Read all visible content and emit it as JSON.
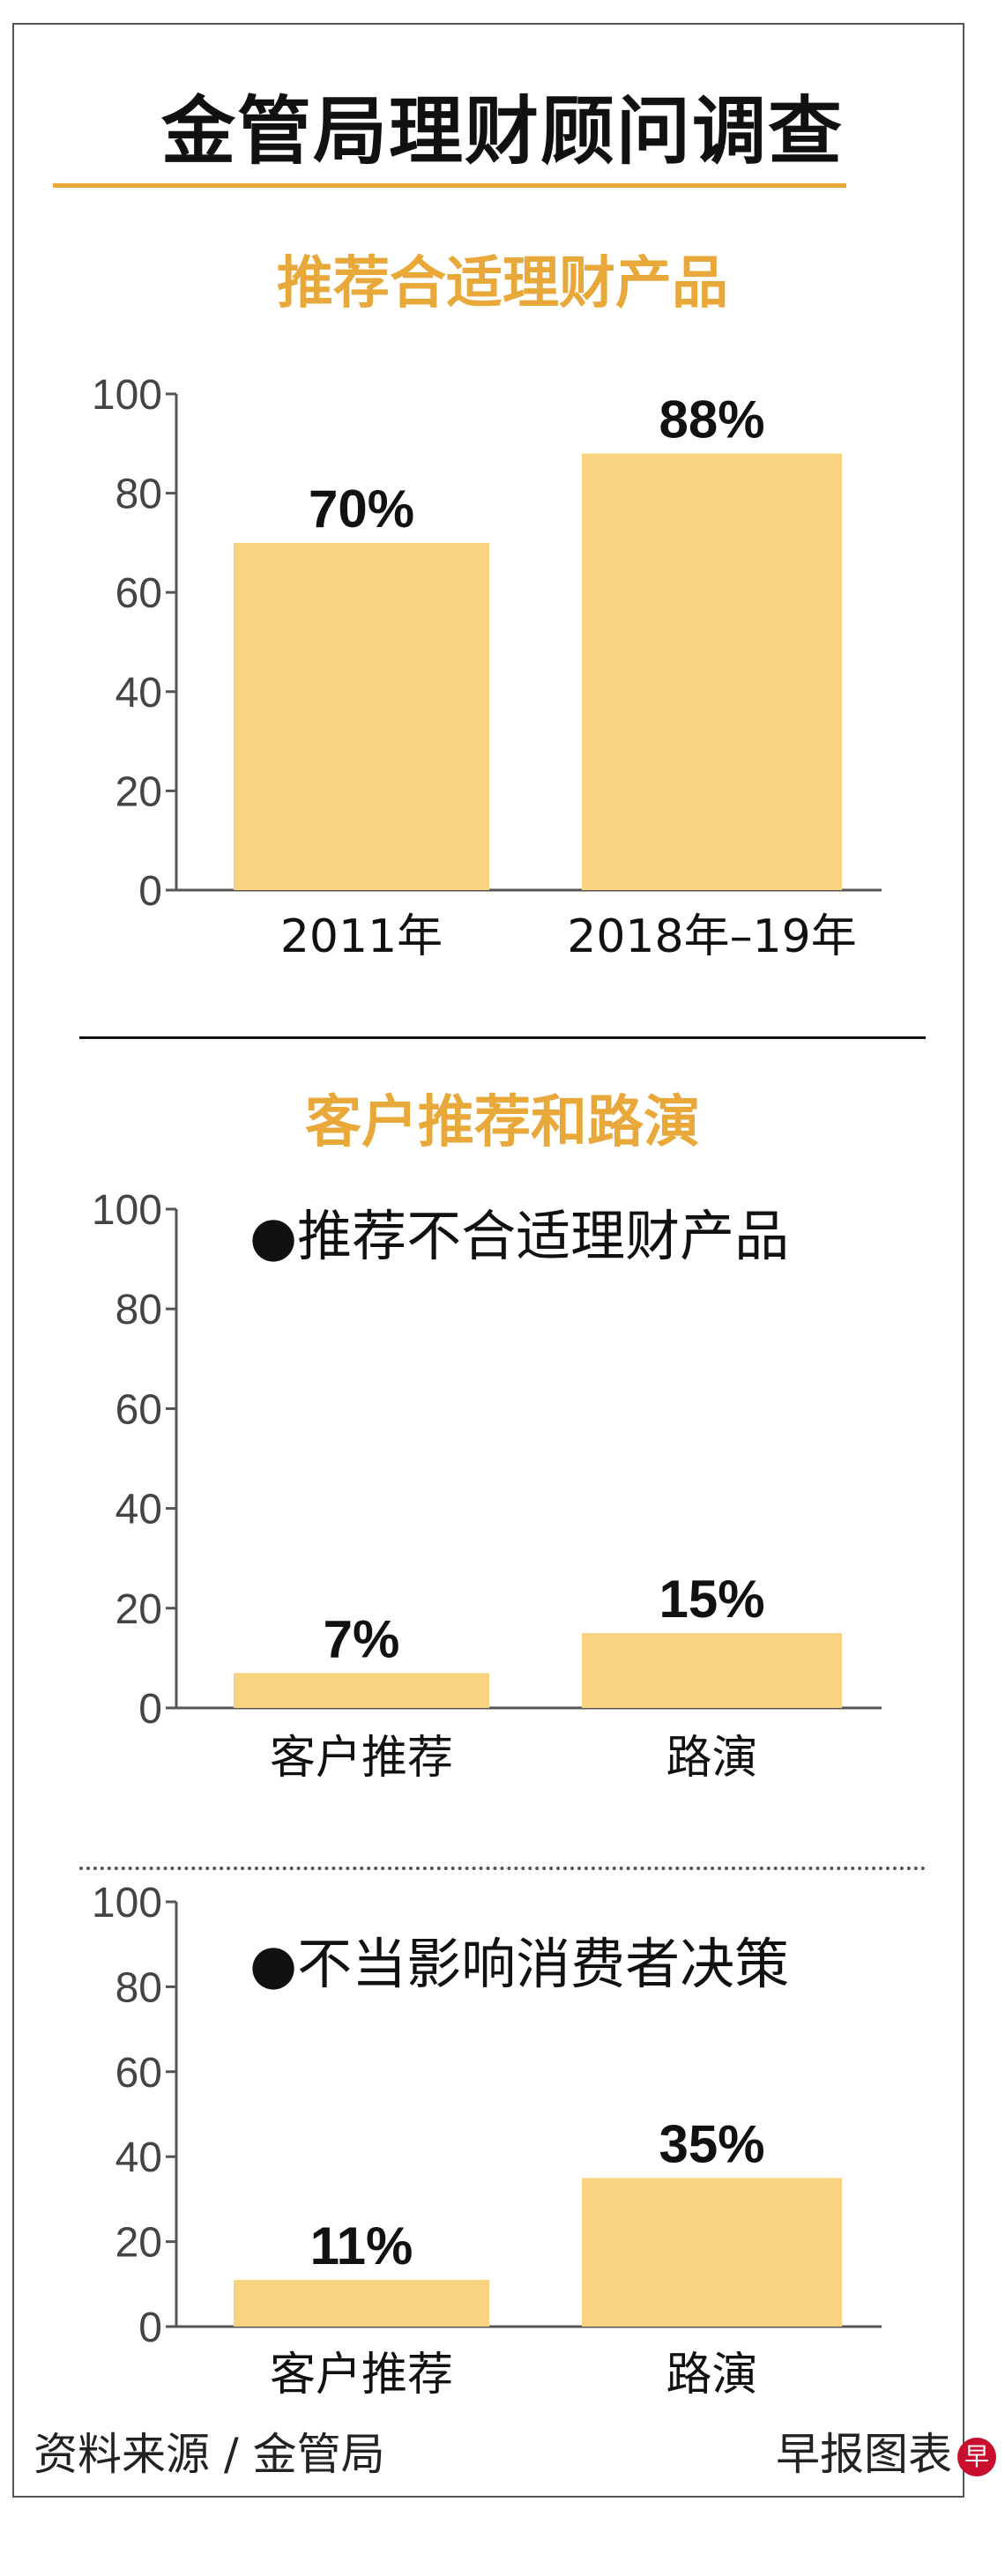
{
  "header": {
    "title": "金管局理财顾问调查"
  },
  "chart_data": [
    {
      "type": "bar",
      "title": "推荐合适理财产品",
      "legend": "",
      "categories": [
        "2011年",
        "2018年–19年"
      ],
      "values": [
        70,
        88
      ],
      "value_labels": [
        "70%",
        "88%"
      ],
      "yticks": [
        "0",
        "20",
        "40",
        "60",
        "80",
        "100"
      ],
      "ylim": [
        0,
        100
      ]
    },
    {
      "type": "bar",
      "title": "客户推荐和路演",
      "legend": "●推荐不合适理财产品",
      "categories": [
        "客户推荐",
        "路演"
      ],
      "values": [
        7,
        15
      ],
      "value_labels": [
        "7%",
        "15%"
      ],
      "yticks": [
        "0",
        "20",
        "40",
        "60",
        "80",
        "100"
      ],
      "ylim": [
        0,
        100
      ]
    },
    {
      "type": "bar",
      "title": "",
      "legend": "●不当影响消费者决策",
      "categories": [
        "客户推荐",
        "路演"
      ],
      "values": [
        11,
        35
      ],
      "value_labels": [
        "11%",
        "35%"
      ],
      "yticks": [
        "0",
        "20",
        "40",
        "60",
        "80",
        "100"
      ],
      "ylim": [
        0,
        100
      ]
    }
  ],
  "colors": {
    "bar": "#f8d380",
    "accent": "#e9a93a",
    "axis": "#555555",
    "text": "#111111"
  },
  "footer": {
    "source": "资料来源 / 金管局",
    "credit": "早报图表",
    "badge": "早"
  }
}
